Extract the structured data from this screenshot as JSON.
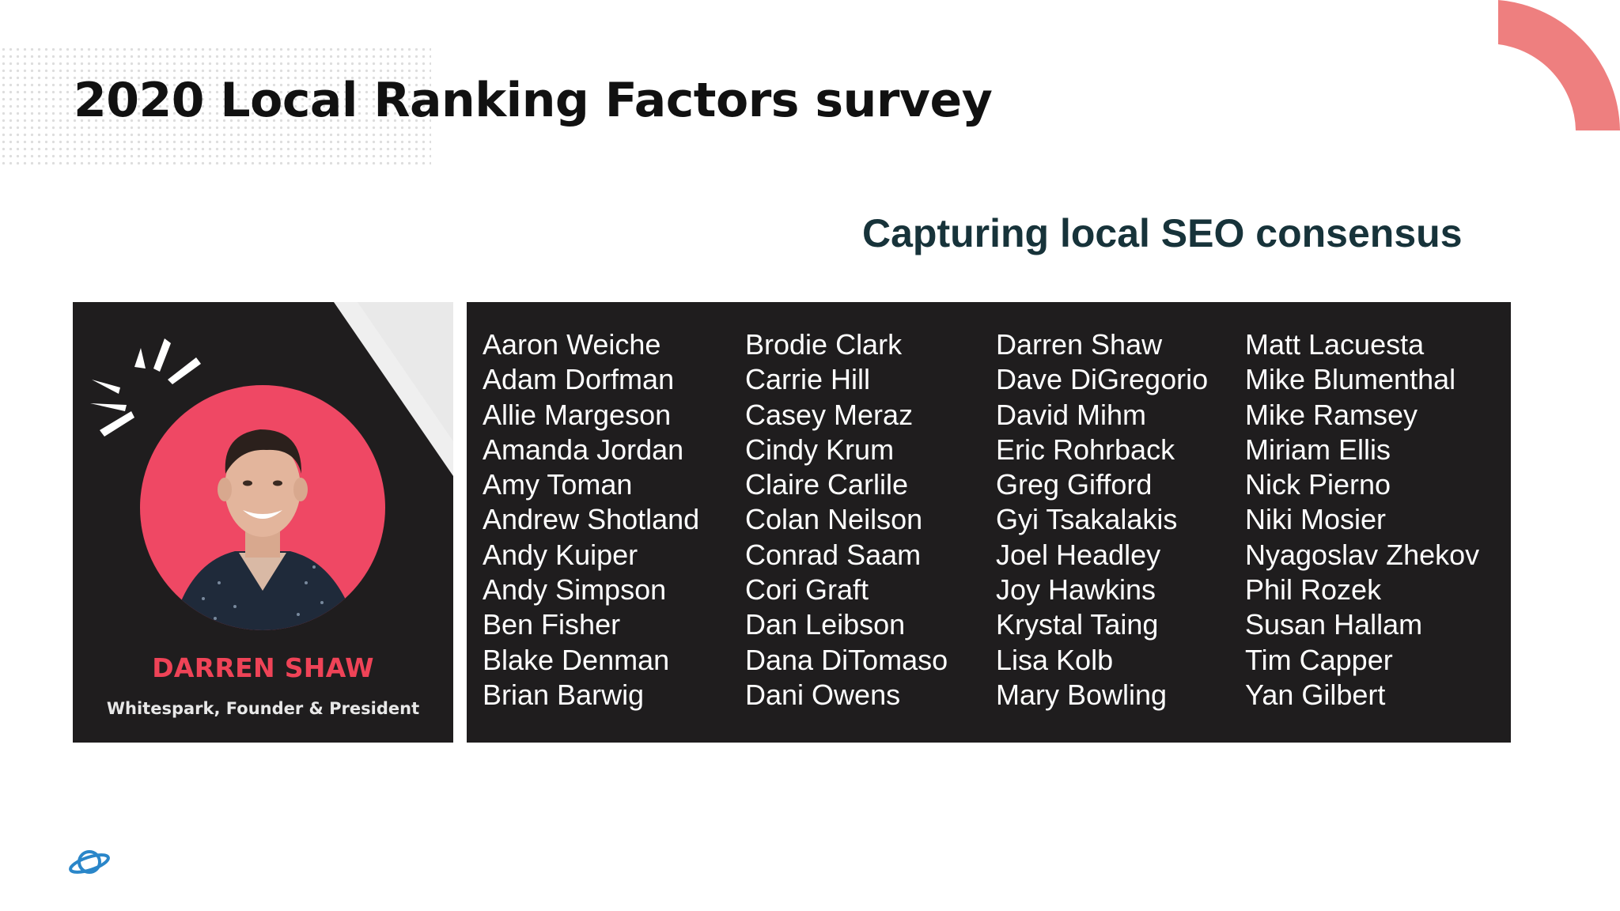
{
  "slide": {
    "title": "2020 Local Ranking Factors survey",
    "subtitle": "Capturing local SEO consensus"
  },
  "profile_card": {
    "name": "DARREN SHAW",
    "role": "Whitespark, Founder & President"
  },
  "contributors": {
    "columns": [
      [
        "Aaron Weiche",
        "Adam Dorfman",
        "Allie Margeson",
        "Amanda Jordan",
        "Amy Toman",
        "Andrew Shotland",
        "Andy Kuiper",
        "Andy Simpson",
        "Ben Fisher",
        "Blake Denman",
        "Brian Barwig"
      ],
      [
        "Brodie Clark",
        "Carrie Hill",
        "Casey Meraz",
        "Cindy Krum",
        "Claire Carlile",
        "Colan Neilson",
        "Conrad Saam",
        "Cori Graft",
        "Dan Leibson",
        "Dana DiTomaso",
        "Dani Owens"
      ],
      [
        "Darren Shaw",
        "Dave DiGregorio",
        "David Mihm",
        "Eric Rohrback",
        "Greg Gifford",
        "Gyi Tsakalakis",
        "Joel Headley",
        "Joy Hawkins",
        "Krystal Taing",
        "Lisa Kolb",
        "Mary Bowling"
      ],
      [
        "Matt Lacuesta",
        "Mike Blumenthal",
        "Mike Ramsey",
        "Miriam Ellis",
        "Nick Pierno",
        "Niki Mosier",
        "Nyagoslav Zhekov",
        "Phil Rozek",
        "Susan Hallam",
        "Tim Capper",
        "Yan Gilbert"
      ]
    ]
  },
  "icons": {
    "corner_decoration": "quarter-ring-arc",
    "burst": "burst-lines-icon",
    "logo": "planet-logo-icon"
  },
  "colors": {
    "accent_arc": "#ee7f7f",
    "card_background": "#1f1d1e",
    "portrait_circle": "#ef4864",
    "name_red": "#ef4357",
    "subtitle_teal": "#17333a",
    "logo_blue": "#2a86c9"
  }
}
